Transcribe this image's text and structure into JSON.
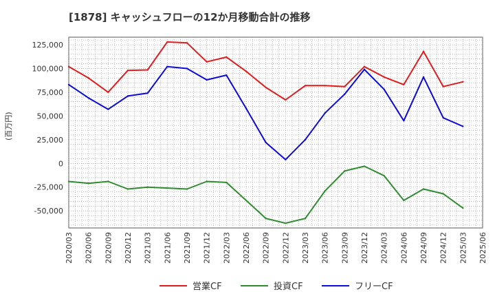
{
  "chart_data": {
    "type": "line",
    "title": "[1878]  キャッシュフローの12か月移動合計の推移",
    "ylabel": "(百万円)",
    "xlabel": "",
    "ylim": [
      -68000,
      133000
    ],
    "yticks": [
      -50000,
      -25000,
      0,
      25000,
      50000,
      75000,
      100000,
      125000
    ],
    "ytick_labels": [
      "-50,000",
      "-25,000",
      "0",
      "25,000",
      "50,000",
      "75,000",
      "100,000",
      "125,000"
    ],
    "x_tick_labels": [
      "2020/03",
      "2020/06",
      "2020/09",
      "2020/12",
      "2021/03",
      "2021/06",
      "2021/09",
      "2021/12",
      "2022/03",
      "2022/06",
      "2022/09",
      "2022/12",
      "2023/03",
      "2023/06",
      "2023/09",
      "2023/12",
      "2024/03",
      "2024/06",
      "2024/09",
      "2024/12",
      "2025/03",
      "2025/06"
    ],
    "categories": [
      "2020/03",
      "2020/06",
      "2020/09",
      "2020/12",
      "2021/03",
      "2021/06",
      "2021/09",
      "2021/12",
      "2022/03",
      "2022/06",
      "2022/09",
      "2022/12",
      "2023/03",
      "2023/06",
      "2023/09",
      "2023/12",
      "2024/03",
      "2024/06",
      "2024/09",
      "2024/12",
      "2025/03"
    ],
    "grid": true,
    "legend_position": "bottom",
    "series": [
      {
        "name": "営業CF",
        "color": "#e31a1c",
        "values": [
          102000,
          90000,
          75000,
          98000,
          98500,
          128000,
          127000,
          107000,
          112000,
          97000,
          80000,
          67000,
          82000,
          82000,
          81000,
          102000,
          91000,
          83000,
          118000,
          81000,
          86000
        ]
      },
      {
        "name": "投資CF",
        "color": "#2e8b2e",
        "values": [
          -19000,
          -21000,
          -19000,
          -27000,
          -25000,
          -26000,
          -27000,
          -19000,
          -20000,
          -39000,
          -58000,
          -63000,
          -58000,
          -29000,
          -8000,
          -3000,
          -13000,
          -39000,
          -27000,
          -32000,
          -47000
        ]
      },
      {
        "name": "フリーCF",
        "color": "#0a0adc",
        "values": [
          83000,
          69000,
          57000,
          71000,
          74000,
          102000,
          100000,
          88000,
          93000,
          58000,
          22000,
          4000,
          25000,
          53000,
          73000,
          99000,
          78000,
          45000,
          91000,
          48000,
          39000
        ]
      }
    ]
  }
}
